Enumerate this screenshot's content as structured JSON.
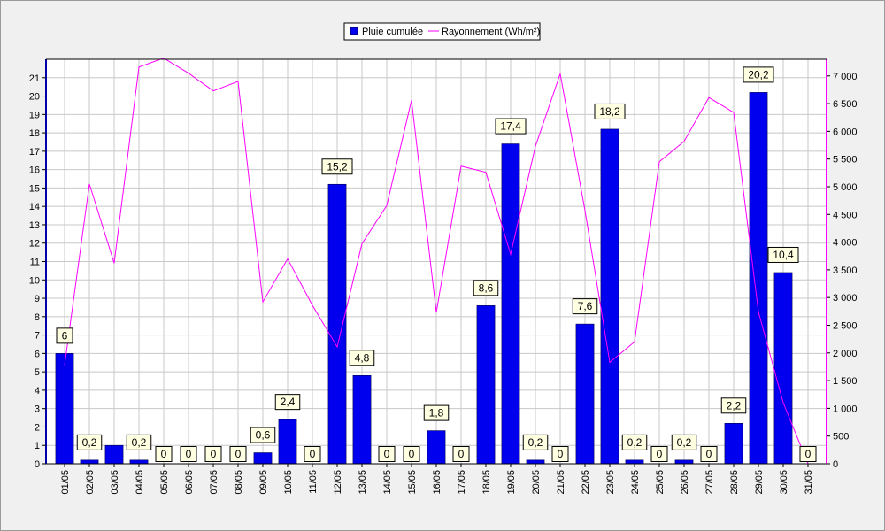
{
  "chart_data": {
    "type": "bar+line",
    "categories": [
      "01/05",
      "02/05",
      "03/05",
      "04/05",
      "05/05",
      "06/05",
      "07/05",
      "08/05",
      "09/05",
      "10/05",
      "11/05",
      "12/05",
      "13/05",
      "14/05",
      "15/05",
      "16/05",
      "17/05",
      "18/05",
      "19/05",
      "20/05",
      "21/05",
      "22/05",
      "23/05",
      "24/05",
      "25/05",
      "26/05",
      "27/05",
      "28/05",
      "29/05",
      "30/05",
      "31/05"
    ],
    "series": [
      {
        "name": "Pluie cumulée",
        "type": "bar",
        "axis": "left",
        "color": "#0000ee",
        "values": [
          6,
          0.2,
          1,
          0.2,
          0,
          0,
          0,
          0,
          0.6,
          2.4,
          0,
          15.2,
          4.8,
          0,
          0,
          1.8,
          0,
          8.6,
          17.4,
          0.2,
          0,
          7.6,
          18.2,
          0.2,
          0,
          0.2,
          0,
          2.2,
          20.2,
          10.4,
          0
        ],
        "labels": [
          "6",
          "0,2",
          null,
          "0,2",
          "0",
          "0",
          "0",
          "0",
          "0,6",
          "2,4",
          "0",
          "15,2",
          "4,8",
          "0",
          "0",
          "1,8",
          "0",
          "8,6",
          "17,4",
          "0,2",
          "0",
          "7,6",
          "18,2",
          "0,2",
          "0",
          "0,2",
          "0",
          "2,2",
          "20,2",
          "10,4",
          "0"
        ]
      },
      {
        "name": "Rayonnement (Wh/m²)",
        "type": "line",
        "axis": "right",
        "color": "#ff00ff",
        "values": [
          1780,
          5050,
          3620,
          7160,
          7320,
          7050,
          6730,
          6900,
          2920,
          3700,
          2860,
          2110,
          3970,
          4660,
          6560,
          2730,
          5370,
          5260,
          3780,
          5730,
          7040,
          4570,
          1830,
          2200,
          5450,
          5820,
          6610,
          6340,
          2740,
          1100,
          0
        ]
      }
    ],
    "y_left": {
      "min": 0,
      "max": 22,
      "ticks": [
        0,
        1,
        2,
        3,
        4,
        5,
        6,
        7,
        8,
        9,
        10,
        11,
        12,
        13,
        14,
        15,
        16,
        17,
        18,
        19,
        20,
        21
      ]
    },
    "y_right": {
      "min": 0,
      "max": 7300,
      "ticks": [
        0,
        500,
        1000,
        1500,
        2000,
        2500,
        3000,
        3500,
        4000,
        4500,
        5000,
        5500,
        6000,
        6500,
        7000
      ],
      "tick_labels": [
        "0",
        "500",
        "1 000",
        "1 500",
        "2 000",
        "2 500",
        "3 000",
        "3 500",
        "4 000",
        "4 500",
        "5 000",
        "5 500",
        "6 000",
        "6 500",
        "7 000"
      ]
    },
    "grid": true,
    "legend": "top-center",
    "title": "",
    "xlabel": "",
    "ylabel": ""
  }
}
